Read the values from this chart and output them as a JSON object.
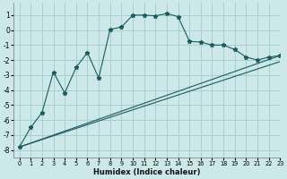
{
  "xlabel": "Humidex (Indice chaleur)",
  "bg_color": "#cce8e8",
  "grid_color": "#aacfcf",
  "line_color": "#1a5c5c",
  "line1_x": [
    0,
    1,
    2,
    3,
    4,
    5,
    6,
    7,
    8,
    9,
    10,
    11,
    12,
    13,
    14,
    15,
    16,
    17,
    18,
    19,
    20,
    21,
    22,
    23
  ],
  "line1_y": [
    -7.8,
    -6.5,
    -5.5,
    -2.8,
    -4.2,
    -2.5,
    -1.5,
    -3.2,
    0.05,
    0.2,
    1.0,
    1.0,
    0.95,
    1.1,
    0.9,
    -0.75,
    -0.8,
    -1.0,
    -1.0,
    -1.3,
    -1.8,
    -2.0,
    -1.8,
    -1.7
  ],
  "line2_x": [
    0,
    23
  ],
  "line2_y": [
    -7.8,
    -1.7
  ],
  "line3_x": [
    0,
    23
  ],
  "line3_y": [
    -7.8,
    -2.1
  ],
  "ylim": [
    -8.5,
    1.8
  ],
  "xlim": [
    -0.5,
    23
  ],
  "yticks": [
    -8,
    -7,
    -6,
    -5,
    -4,
    -3,
    -2,
    -1,
    0,
    1
  ],
  "xticks": [
    0,
    1,
    2,
    3,
    4,
    5,
    6,
    7,
    8,
    9,
    10,
    11,
    12,
    13,
    14,
    15,
    16,
    17,
    18,
    19,
    20,
    21,
    22,
    23
  ],
  "xlabel_fontsize": 6.0,
  "tick_fontsize": 4.8,
  "ytick_fontsize": 5.5
}
